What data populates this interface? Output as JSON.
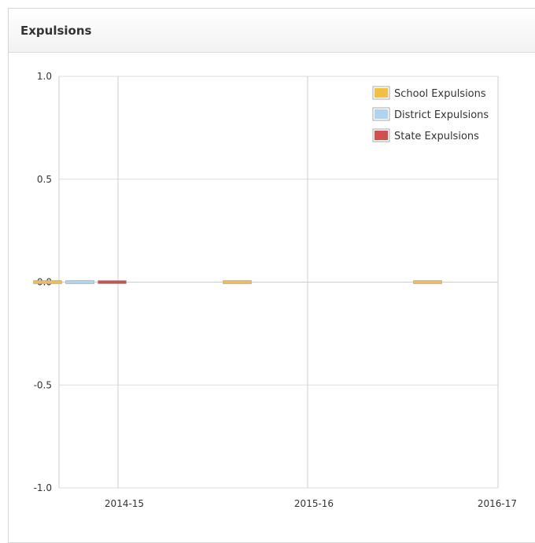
{
  "panel": {
    "title": "Expulsions"
  },
  "chart_data": {
    "type": "bar",
    "title": "",
    "xlabel": "",
    "ylabel": "",
    "categories": [
      "2014-15",
      "2015-16",
      "2016-17"
    ],
    "ylim": [
      -1.0,
      1.0
    ],
    "y_ticks": [
      "1.0",
      "0.5",
      "0.0",
      "-0.5",
      "-1.0"
    ],
    "y_tick_values": [
      1.0,
      0.5,
      0.0,
      -0.5,
      -1.0
    ],
    "grid": true,
    "legend_position": "top-right",
    "series": [
      {
        "name": "School Expulsions",
        "color": "#f0c040",
        "values": [
          0,
          0,
          0
        ]
      },
      {
        "name": "District Expulsions",
        "color": "#b0d4f0",
        "values": [
          0,
          null,
          null
        ]
      },
      {
        "name": "State Expulsions",
        "color": "#d05050",
        "values": [
          0,
          null,
          null
        ]
      }
    ]
  }
}
